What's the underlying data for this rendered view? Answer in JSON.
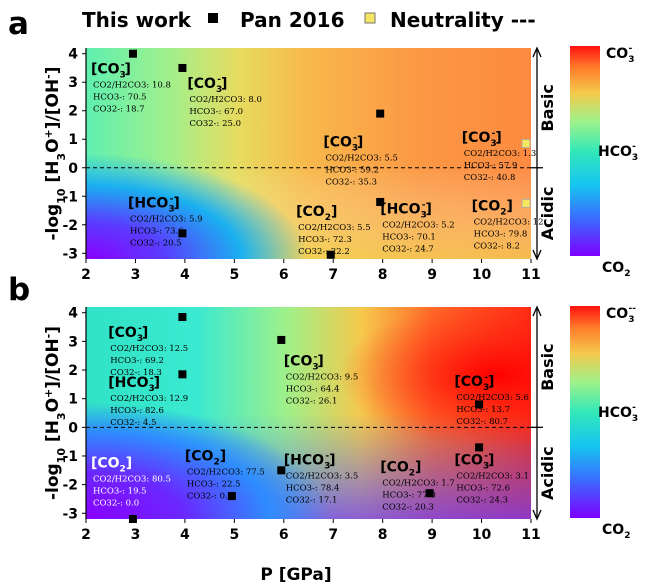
{
  "chart_data": [
    {
      "type": "heatmap",
      "panel_label": "a",
      "legend": {
        "this_work": "This work",
        "pan2016": "Pan 2016",
        "neutrality": "Neutrality ---"
      },
      "ylabel_parts": [
        "-log",
        "10",
        " [H",
        "3",
        "O",
        "+",
        "]/[OH",
        "-",
        "]"
      ],
      "xlim": [
        2,
        11
      ],
      "ylim": [
        -3.2,
        4.2
      ],
      "x_ticks": [
        "2",
        "3",
        "4",
        "5",
        "6",
        "7",
        "8",
        "9",
        "10",
        "11"
      ],
      "y_ticks": [
        "4",
        "3",
        "2",
        "1",
        "0",
        "-1",
        "-2",
        "-3"
      ],
      "regions": {
        "basic": "Basic",
        "acidic": "Acidic"
      },
      "colorbar": {
        "top": "CO3-",
        "mid": "HCO3-",
        "bottom": "CO2"
      },
      "points_this_work": [
        {
          "x": 2.95,
          "y": 4.0
        },
        {
          "x": 3.95,
          "y": 3.5
        },
        {
          "x": 7.95,
          "y": 1.9
        },
        {
          "x": 3.95,
          "y": -2.3
        },
        {
          "x": 6.95,
          "y": -3.05
        },
        {
          "x": 7.95,
          "y": -1.2
        }
      ],
      "points_pan2016": [
        {
          "x": 10.9,
          "y": 0.85
        },
        {
          "x": 10.9,
          "y": -1.25
        }
      ],
      "annotations": [
        {
          "x": 2.1,
          "y": 3.3,
          "title": [
            "CO",
            "3",
            "-"
          ],
          "lines": [
            "CO2/H2CO3: 10.8",
            "HCO3-: 70.5",
            "CO32-: 18.7"
          ]
        },
        {
          "x": 4.05,
          "y": 2.8,
          "title": [
            "CO",
            "3",
            "-"
          ],
          "lines": [
            "CO2/H2CO3: 8.0",
            "HCO3-: 67.0",
            "CO32-: 25.0"
          ]
        },
        {
          "x": 6.8,
          "y": 0.75,
          "title": [
            "CO",
            "3",
            "-"
          ],
          "lines": [
            "CO2/H2CO3: 5.5",
            "HCO3-: 59.2",
            "CO32-: 35.3"
          ]
        },
        {
          "x": 9.6,
          "y": 0.9,
          "title": [
            "CO",
            "3",
            "-"
          ],
          "lines": [
            "CO2/H2CO3: 1.3",
            "HCO3-: 57.9",
            "CO32-: 40.8"
          ]
        },
        {
          "x": 2.85,
          "y": -1.4,
          "title": [
            "HCO",
            "3",
            "-"
          ],
          "lines": [
            "CO2/H2CO3: 5.9",
            "HCO3-: 73.6",
            "CO32-: 20.5"
          ]
        },
        {
          "x": 6.25,
          "y": -1.7,
          "title": [
            "CO",
            "2",
            ""
          ],
          "lines": [
            "CO2/H2CO3: 5.5",
            "HCO3-: 72.3",
            "CO32-: 22.2"
          ]
        },
        {
          "x": 7.95,
          "y": -1.6,
          "title": [
            "HCO",
            "3",
            "-"
          ],
          "lines": [
            "CO2/H2CO3: 5.2",
            "HCO3-: 70.1",
            "CO32-: 24.7"
          ]
        },
        {
          "x": 9.8,
          "y": -1.5,
          "title": [
            "CO",
            "2",
            ""
          ],
          "lines": [
            "CO2/H2CO3: 12.",
            "HCO3-: 79.8",
            "CO32-: 8.2"
          ]
        }
      ]
    },
    {
      "type": "heatmap",
      "panel_label": "b",
      "ylabel_parts": [
        "-log",
        "10",
        " [H",
        "3",
        "O",
        "+",
        "]/[OH",
        "-",
        "]"
      ],
      "xlabel": "P [GPa]",
      "xlim": [
        2,
        11
      ],
      "ylim": [
        -3.2,
        4.2
      ],
      "x_ticks": [
        "2",
        "3",
        "4",
        "5",
        "6",
        "7",
        "8",
        "9",
        "10",
        "11"
      ],
      "y_ticks": [
        "4",
        "3",
        "2",
        "1",
        "0",
        "-1",
        "-2",
        "-3"
      ],
      "regions": {
        "basic": "Basic",
        "acidic": "Acidic"
      },
      "colorbar": {
        "top": "CO3--",
        "mid": "HCO3-",
        "bottom": "CO2"
      },
      "points_this_work": [
        {
          "x": 3.95,
          "y": 3.85
        },
        {
          "x": 5.95,
          "y": 3.05
        },
        {
          "x": 3.95,
          "y": 1.85
        },
        {
          "x": 9.95,
          "y": 0.8
        },
        {
          "x": 9.95,
          "y": -0.7
        },
        {
          "x": 2.95,
          "y": -3.2
        },
        {
          "x": 4.95,
          "y": -2.4
        },
        {
          "x": 5.95,
          "y": -1.5
        },
        {
          "x": 8.95,
          "y": -2.3
        }
      ],
      "annotations": [
        {
          "x": 2.45,
          "y": 3.15,
          "title": [
            "CO",
            "3",
            "-"
          ],
          "lines": [
            "CO2/H2CO3: 12.5",
            "HCO3-: 69.2",
            "CO32-: 18.3"
          ]
        },
        {
          "x": 6.0,
          "y": 2.15,
          "title": [
            "CO",
            "3",
            "-"
          ],
          "lines": [
            "CO2/H2CO3: 9.5",
            "HCO3-: 64.4",
            "CO32-: 26.1"
          ]
        },
        {
          "x": 2.45,
          "y": 1.4,
          "title": [
            "HCO",
            "3",
            "-"
          ],
          "lines": [
            "CO2/H2CO3: 12.9",
            "HCO3-: 82.6",
            "CO32-: 4.5"
          ]
        },
        {
          "x": 9.45,
          "y": 1.45,
          "title": [
            "CO",
            "3",
            "-"
          ],
          "lines": [
            "CO2/H2CO3: 5.6",
            "HCO3-: 13.7",
            "CO32-: 80.7"
          ]
        },
        {
          "x": 2.1,
          "y": -1.4,
          "title": [
            "CO",
            "2",
            ""
          ],
          "lines": [
            "CO2/H2CO3: 80.5",
            "HCO3-: 19.5",
            "CO32-: 0.0"
          ],
          "white": true
        },
        {
          "x": 4.0,
          "y": -1.15,
          "title": [
            "CO",
            "2",
            ""
          ],
          "lines": [
            "CO2/H2CO3: 77.5",
            "HCO3-: 22.5",
            "CO32-: 0.0"
          ]
        },
        {
          "x": 6.0,
          "y": -1.3,
          "title": [
            "HCO",
            "3",
            "-"
          ],
          "lines": [
            "CO2/H2CO3: 3.5",
            "HCO3-: 78.4",
            "CO32-: 17.1"
          ]
        },
        {
          "x": 7.95,
          "y": -1.55,
          "title": [
            "CO",
            "2",
            ""
          ],
          "lines": [
            "CO2/H2CO3: 1.7",
            "HCO3-: 77.0",
            "CO32-: 20.3"
          ]
        },
        {
          "x": 9.45,
          "y": -1.3,
          "title": [
            "CO",
            "3",
            "-"
          ],
          "lines": [
            "CO2/H2CO3: 3.1",
            "HCO3-: 72.6",
            "CO32-: 24.3"
          ]
        }
      ]
    }
  ]
}
